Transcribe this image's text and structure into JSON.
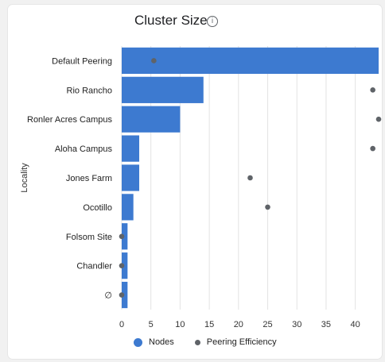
{
  "chart_data": {
    "type": "bar",
    "orientation": "horizontal",
    "title": "Cluster Size",
    "title_icon": "info-icon",
    "ylabel": "Locality",
    "xlabel": "",
    "categories": [
      "Default Peering",
      "Rio Rancho",
      "Ronler Acres Campus",
      "Aloha Campus",
      "Jones Farm",
      "Ocotillo",
      "Folsom Site",
      "Chandler",
      "∅"
    ],
    "series": [
      {
        "name": "Nodes",
        "type": "bar",
        "color": "#3d7ad0",
        "values": [
          44,
          14,
          10,
          3,
          3,
          2,
          1,
          1,
          1
        ]
      },
      {
        "name": "Peering Efficiency",
        "type": "scatter",
        "color": "#5f6368",
        "values": [
          5.5,
          43,
          44,
          43,
          22,
          25,
          0,
          0,
          0
        ]
      }
    ],
    "xlim": [
      0,
      44
    ],
    "xticks": [
      0,
      5,
      10,
      15,
      20,
      25,
      30,
      35,
      40
    ],
    "grid": true,
    "legend": "bottom"
  }
}
